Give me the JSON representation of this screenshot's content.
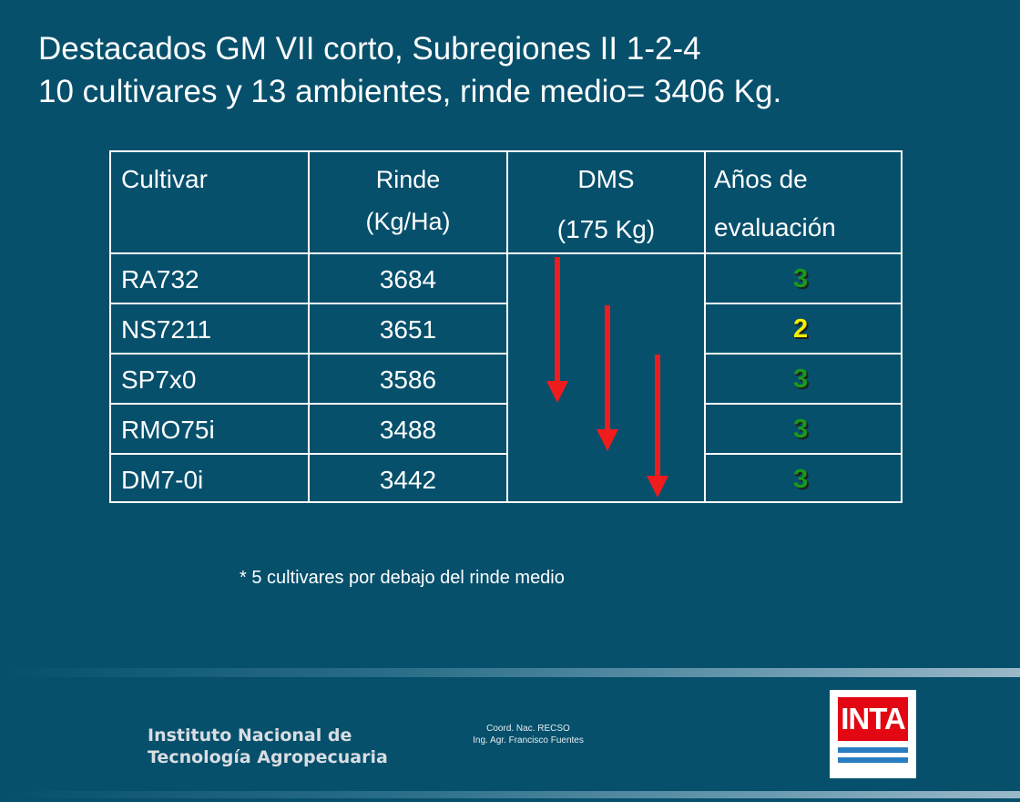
{
  "title": {
    "line1": "Destacados GM VII corto, Subregiones II 1-2-4",
    "line2": "10 cultivares y 13 ambientes, rinde medio= 3406 Kg."
  },
  "table": {
    "headers": {
      "cultivar": "Cultivar",
      "rinde_line1": "Rinde",
      "rinde_line2": "(Kg/Ha)",
      "dms_line1": "DMS",
      "dms_line2": "(175 Kg)",
      "anos_line1": "Años de",
      "anos_line2": "evaluación"
    },
    "rows": [
      {
        "cultivar": "RA732",
        "rinde": "3684",
        "anos": "3",
        "anos_color": "#1a9a1a"
      },
      {
        "cultivar": "NS7211",
        "rinde": "3651",
        "anos": "2",
        "anos_color": "#f0f000"
      },
      {
        "cultivar": "SP7x0",
        "rinde": "3586",
        "anos": "3",
        "anos_color": "#1a9a1a"
      },
      {
        "cultivar": "RMO75i",
        "rinde": "3488",
        "anos": "3",
        "anos_color": "#1a9a1a"
      },
      {
        "cultivar": "DM7-0i",
        "rinde": "3442",
        "anos": "3",
        "anos_color": "#1a9a1a"
      }
    ],
    "arrow_color": "#ee1c1c"
  },
  "footnote": "* 5 cultivares por debajo del rinde medio",
  "footer": {
    "institution_line1": "Instituto Nacional de",
    "institution_line2": "Tecnología Agropecuaria",
    "coord_line1": "Coord. Nac. RECSO",
    "coord_line2": "Ing. Agr. Francisco Fuentes",
    "logo_text": "INTA"
  },
  "colors": {
    "background": "#06506c",
    "text": "#ffffff"
  }
}
